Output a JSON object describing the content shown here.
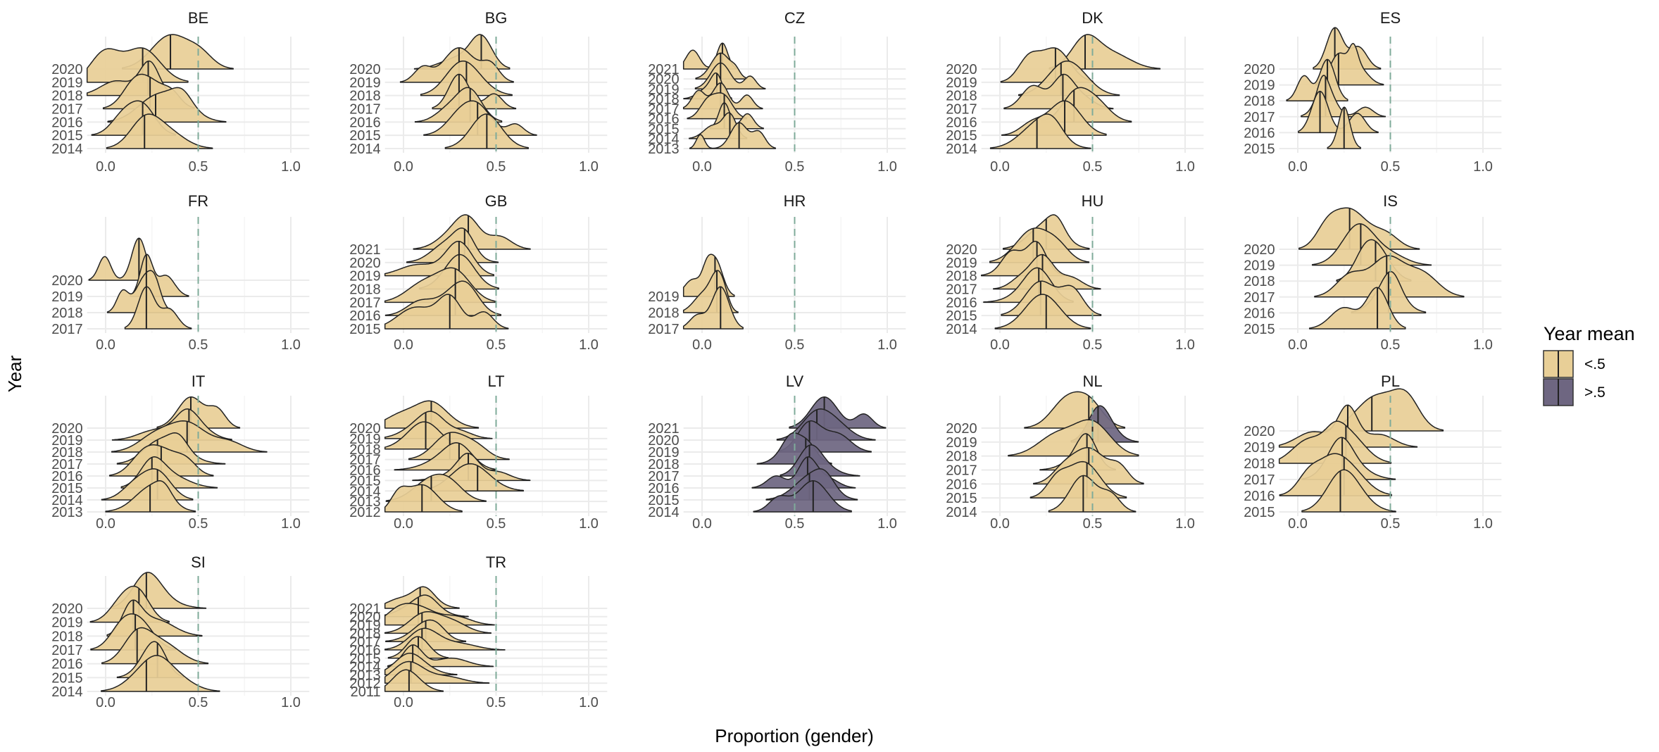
{
  "chart_data": {
    "type": "area",
    "subtype": "ridgeline",
    "xlabel": "Proportion (gender)",
    "ylabel": "Year",
    "xlim": [
      -0.1,
      1.1
    ],
    "xticks": [
      "0.0",
      "0.5",
      "1.0"
    ],
    "reference_line": {
      "x": 0.5,
      "style": "dashed"
    },
    "legend": {
      "title": "Year mean",
      "position": "right",
      "items": [
        {
          "label": "<.5",
          "color": "#e8cf97"
        },
        {
          "label": ">.5",
          "color": "#6e6681"
        }
      ]
    },
    "grid": true,
    "panels": [
      {
        "name": "BE",
        "years": [
          "2014",
          "2015",
          "2016",
          "2017",
          "2018",
          "2019",
          "2020"
        ],
        "means": [
          0.21,
          0.2,
          0.27,
          0.24,
          0.23,
          0.2,
          0.35
        ]
      },
      {
        "name": "BG",
        "years": [
          "2014",
          "2015",
          "2016",
          "2017",
          "2018",
          "2019",
          "2020"
        ],
        "means": [
          0.45,
          0.4,
          0.36,
          0.3,
          0.34,
          0.3,
          0.42
        ]
      },
      {
        "name": "CZ",
        "years": [
          "2013",
          "2014",
          "2015",
          "2016",
          "2017",
          "2018",
          "2019",
          "2020",
          "2021"
        ],
        "means": [
          0.2,
          0.15,
          0.12,
          0.12,
          0.1,
          0.08,
          0.1,
          0.1,
          0.11
        ]
      },
      {
        "name": "DK",
        "years": [
          "2014",
          "2015",
          "2016",
          "2017",
          "2018",
          "2019",
          "2020"
        ],
        "means": [
          0.2,
          0.35,
          0.4,
          0.34,
          0.33,
          0.3,
          0.46
        ]
      },
      {
        "name": "ES",
        "years": [
          "2015",
          "2016",
          "2017",
          "2018",
          "2019",
          "2020"
        ],
        "means": [
          0.25,
          0.12,
          0.15,
          0.16,
          0.22,
          0.2
        ]
      },
      {
        "name": "FR",
        "years": [
          "2017",
          "2018",
          "2019",
          "2020"
        ],
        "means": [
          0.22,
          0.22,
          0.22,
          0.18
        ]
      },
      {
        "name": "GB",
        "years": [
          "2015",
          "2016",
          "2017",
          "2018",
          "2019",
          "2020",
          "2021"
        ],
        "means": [
          0.25,
          0.28,
          0.28,
          0.3,
          0.3,
          0.33,
          0.35
        ]
      },
      {
        "name": "HR",
        "years": [
          "2017",
          "2018",
          "2019"
        ],
        "means": [
          0.1,
          0.08,
          0.07
        ]
      },
      {
        "name": "HU",
        "years": [
          "2014",
          "2015",
          "2016",
          "2017",
          "2018",
          "2019",
          "2020"
        ],
        "means": [
          0.25,
          0.22,
          0.21,
          0.23,
          0.2,
          0.18,
          0.25
        ]
      },
      {
        "name": "IS",
        "years": [
          "2015",
          "2016",
          "2017",
          "2018",
          "2019",
          "2020"
        ],
        "means": [
          0.43,
          0.49,
          0.48,
          0.42,
          0.34,
          0.28
        ]
      },
      {
        "name": "IT",
        "years": [
          "2013",
          "2014",
          "2015",
          "2016",
          "2017",
          "2018",
          "2019",
          "2020"
        ],
        "means": [
          0.24,
          0.28,
          0.25,
          0.3,
          0.28,
          0.44,
          0.45,
          0.46
        ]
      },
      {
        "name": "LT",
        "years": [
          "2012",
          "2013",
          "2014",
          "2015",
          "2016",
          "2017",
          "2018",
          "2019",
          "2020"
        ],
        "means": [
          0.1,
          0.15,
          0.4,
          0.35,
          0.3,
          0.25,
          0.12,
          0.12,
          0.15
        ]
      },
      {
        "name": "LV",
        "years": [
          "2014",
          "2015",
          "2016",
          "2017",
          "2018",
          "2019",
          "2020",
          "2021"
        ],
        "means": [
          0.6,
          0.58,
          0.57,
          0.58,
          0.56,
          0.58,
          0.62,
          0.66
        ]
      },
      {
        "name": "NL",
        "years": [
          "2014",
          "2015",
          "2016",
          "2017",
          "2018",
          "2019",
          "2020"
        ],
        "means": [
          0.45,
          0.47,
          0.48,
          0.47,
          0.5,
          0.53,
          0.48
        ]
      },
      {
        "name": "PL",
        "years": [
          "2015",
          "2016",
          "2017",
          "2018",
          "2019",
          "2020"
        ],
        "means": [
          0.23,
          0.25,
          0.24,
          0.26,
          0.27,
          0.4
        ]
      },
      {
        "name": "SI",
        "years": [
          "2014",
          "2015",
          "2016",
          "2017",
          "2018",
          "2019",
          "2020"
        ],
        "means": [
          0.22,
          0.28,
          0.17,
          0.16,
          0.15,
          0.18,
          0.22
        ]
      },
      {
        "name": "TR",
        "years": [
          "2011",
          "2012",
          "2013",
          "2014",
          "2015",
          "2016",
          "2017",
          "2018",
          "2019",
          "2020",
          "2021"
        ],
        "means": [
          0.03,
          0.04,
          0.05,
          0.05,
          0.08,
          0.1,
          0.12,
          0.1,
          0.08,
          0.08,
          0.09
        ]
      }
    ]
  }
}
